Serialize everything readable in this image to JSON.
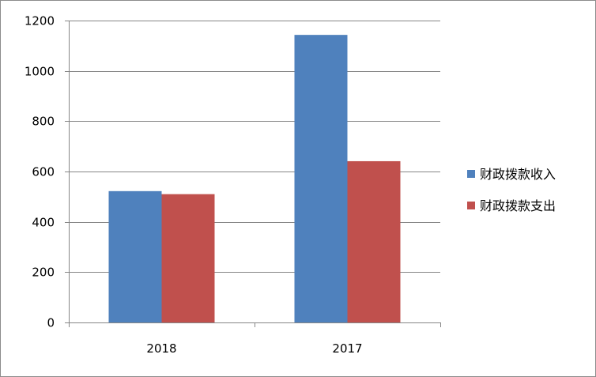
{
  "chart_data": {
    "type": "bar",
    "categories": [
      "2018",
      "2017"
    ],
    "series": [
      {
        "name": "财政拨款收入",
        "values": [
          522,
          1143
        ],
        "color": "#4f81bd"
      },
      {
        "name": "财政拨款支出",
        "values": [
          510,
          641
        ],
        "color": "#c0504d"
      }
    ],
    "ylim": [
      0,
      1200
    ],
    "yticks": [
      0,
      200,
      400,
      600,
      800,
      1000,
      1200
    ],
    "grid": true,
    "legend": "right"
  }
}
